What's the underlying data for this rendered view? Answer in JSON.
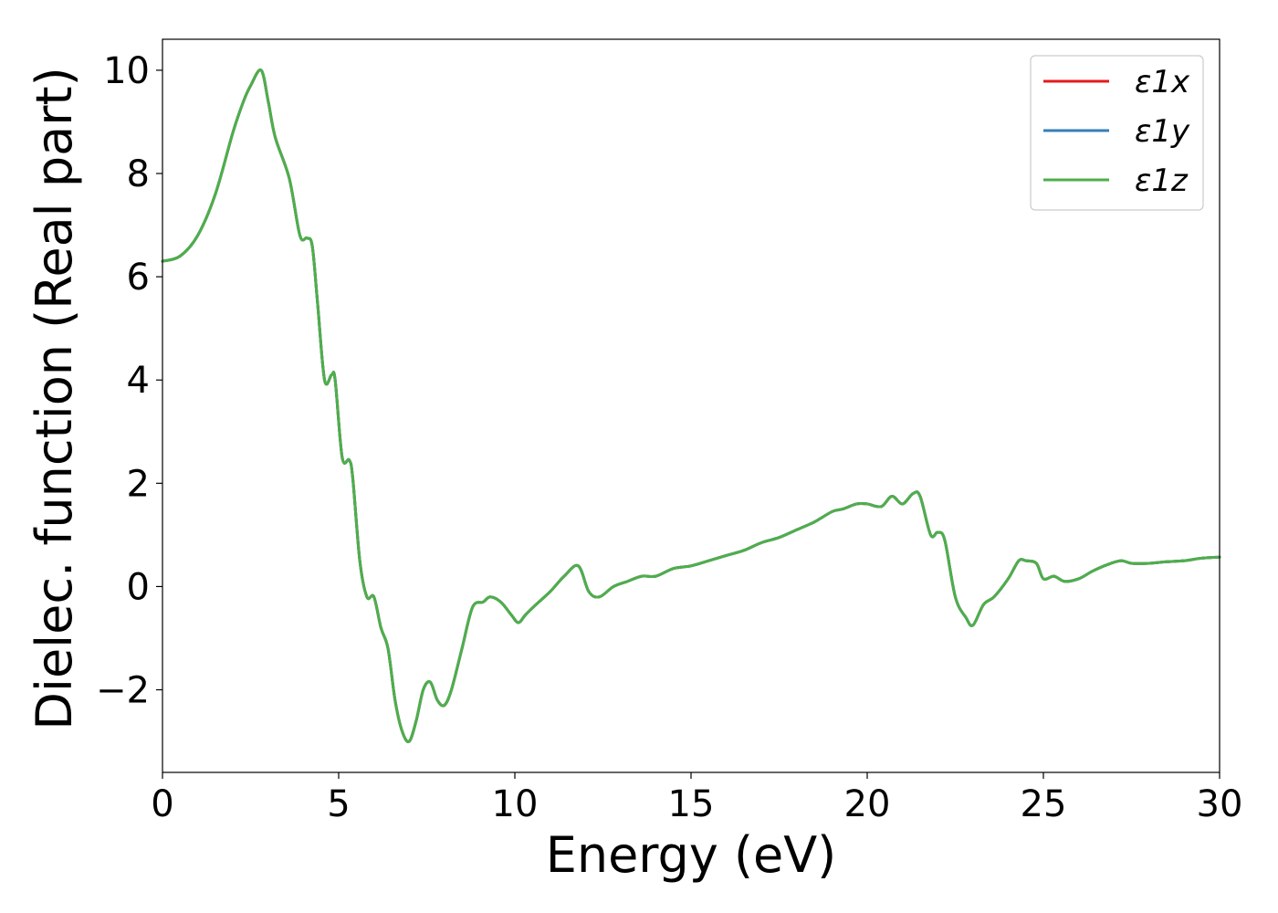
{
  "chart_data": {
    "type": "line",
    "xlabel": "Energy (eV)",
    "ylabel": "Dielec. function (Real part)",
    "xlim": [
      0,
      30
    ],
    "ylim": [
      -3.6,
      10.6
    ],
    "xticks": [
      0,
      5,
      10,
      15,
      20,
      25,
      30
    ],
    "xtick_labels": [
      "0",
      "5",
      "10",
      "15",
      "20",
      "25",
      "30"
    ],
    "yticks": [
      -2,
      0,
      2,
      4,
      6,
      8,
      10
    ],
    "ytick_labels": [
      "−2",
      "0",
      "2",
      "4",
      "6",
      "8",
      "10"
    ],
    "grid": false,
    "legend_position": "top-right",
    "x": [
      0,
      0.5,
      1.0,
      1.5,
      2.0,
      2.3,
      2.5,
      2.8,
      3.0,
      3.2,
      3.6,
      3.9,
      4.1,
      4.25,
      4.4,
      4.6,
      4.8,
      4.9,
      5.1,
      5.3,
      5.4,
      5.6,
      5.8,
      6.0,
      6.2,
      6.4,
      6.6,
      6.8,
      7.0,
      7.2,
      7.4,
      7.6,
      7.8,
      8.0,
      8.2,
      8.5,
      8.8,
      9.1,
      9.3,
      9.6,
      9.9,
      10.1,
      10.3,
      10.6,
      11.0,
      11.4,
      11.8,
      12.1,
      12.4,
      12.8,
      13.2,
      13.6,
      14.0,
      14.5,
      15.0,
      15.5,
      16.0,
      16.5,
      17.0,
      17.5,
      18.0,
      18.5,
      19.0,
      19.3,
      19.7,
      20.0,
      20.4,
      20.7,
      21.0,
      21.3,
      21.5,
      21.8,
      22.0,
      22.2,
      22.5,
      22.8,
      23.0,
      23.3,
      23.6,
      24.0,
      24.3,
      24.5,
      24.8,
      25.0,
      25.3,
      25.6,
      26.0,
      26.4,
      26.8,
      27.2,
      27.5,
      28.0,
      28.5,
      29.0,
      29.5,
      30.0
    ],
    "series": [
      {
        "name": "ε1x",
        "color": "#e41a1c",
        "y": [
          6.3,
          6.4,
          6.8,
          7.6,
          8.8,
          9.4,
          9.7,
          10.0,
          9.4,
          8.7,
          7.9,
          6.8,
          6.75,
          6.6,
          5.5,
          4.0,
          4.1,
          4.0,
          2.5,
          2.45,
          2.1,
          0.5,
          -0.2,
          -0.2,
          -0.8,
          -1.2,
          -2.2,
          -2.8,
          -3.0,
          -2.6,
          -2.0,
          -1.85,
          -2.2,
          -2.3,
          -2.0,
          -1.2,
          -0.4,
          -0.3,
          -0.2,
          -0.3,
          -0.55,
          -0.7,
          -0.55,
          -0.35,
          -0.1,
          0.2,
          0.4,
          -0.1,
          -0.2,
          0.0,
          0.1,
          0.2,
          0.2,
          0.35,
          0.4,
          0.5,
          0.6,
          0.7,
          0.85,
          0.95,
          1.1,
          1.25,
          1.45,
          1.5,
          1.6,
          1.6,
          1.55,
          1.75,
          1.6,
          1.8,
          1.75,
          1.0,
          1.05,
          0.9,
          -0.2,
          -0.6,
          -0.75,
          -0.35,
          -0.2,
          0.15,
          0.5,
          0.5,
          0.45,
          0.15,
          0.2,
          0.1,
          0.15,
          0.3,
          0.42,
          0.5,
          0.45,
          0.45,
          0.48,
          0.5,
          0.55,
          0.57
        ]
      },
      {
        "name": "ε1y",
        "color": "#377eb8",
        "y": [
          6.3,
          6.4,
          6.8,
          7.6,
          8.8,
          9.4,
          9.7,
          10.0,
          9.4,
          8.7,
          7.9,
          6.8,
          6.75,
          6.6,
          5.5,
          4.0,
          4.1,
          4.0,
          2.5,
          2.45,
          2.1,
          0.5,
          -0.2,
          -0.2,
          -0.8,
          -1.2,
          -2.2,
          -2.8,
          -3.0,
          -2.6,
          -2.0,
          -1.85,
          -2.2,
          -2.3,
          -2.0,
          -1.2,
          -0.4,
          -0.3,
          -0.2,
          -0.3,
          -0.55,
          -0.7,
          -0.55,
          -0.35,
          -0.1,
          0.2,
          0.4,
          -0.1,
          -0.2,
          0.0,
          0.1,
          0.2,
          0.2,
          0.35,
          0.4,
          0.5,
          0.6,
          0.7,
          0.85,
          0.95,
          1.1,
          1.25,
          1.45,
          1.5,
          1.6,
          1.6,
          1.55,
          1.75,
          1.6,
          1.8,
          1.75,
          1.0,
          1.05,
          0.9,
          -0.2,
          -0.6,
          -0.75,
          -0.35,
          -0.2,
          0.15,
          0.5,
          0.5,
          0.45,
          0.15,
          0.2,
          0.1,
          0.15,
          0.3,
          0.42,
          0.5,
          0.45,
          0.45,
          0.48,
          0.5,
          0.55,
          0.57
        ]
      },
      {
        "name": "ε1z",
        "color": "#4daf4a",
        "y": [
          6.3,
          6.4,
          6.8,
          7.6,
          8.8,
          9.4,
          9.7,
          10.0,
          9.4,
          8.7,
          7.9,
          6.8,
          6.75,
          6.6,
          5.5,
          4.0,
          4.1,
          4.0,
          2.5,
          2.45,
          2.1,
          0.5,
          -0.2,
          -0.2,
          -0.8,
          -1.2,
          -2.2,
          -2.8,
          -3.0,
          -2.6,
          -2.0,
          -1.85,
          -2.2,
          -2.3,
          -2.0,
          -1.2,
          -0.4,
          -0.3,
          -0.2,
          -0.3,
          -0.55,
          -0.7,
          -0.55,
          -0.35,
          -0.1,
          0.2,
          0.4,
          -0.1,
          -0.2,
          0.0,
          0.1,
          0.2,
          0.2,
          0.35,
          0.4,
          0.5,
          0.6,
          0.7,
          0.85,
          0.95,
          1.1,
          1.25,
          1.45,
          1.5,
          1.6,
          1.6,
          1.55,
          1.75,
          1.6,
          1.8,
          1.75,
          1.0,
          1.05,
          0.9,
          -0.2,
          -0.6,
          -0.75,
          -0.35,
          -0.2,
          0.15,
          0.5,
          0.5,
          0.45,
          0.15,
          0.2,
          0.1,
          0.15,
          0.3,
          0.42,
          0.5,
          0.45,
          0.45,
          0.48,
          0.5,
          0.55,
          0.57
        ]
      }
    ]
  }
}
